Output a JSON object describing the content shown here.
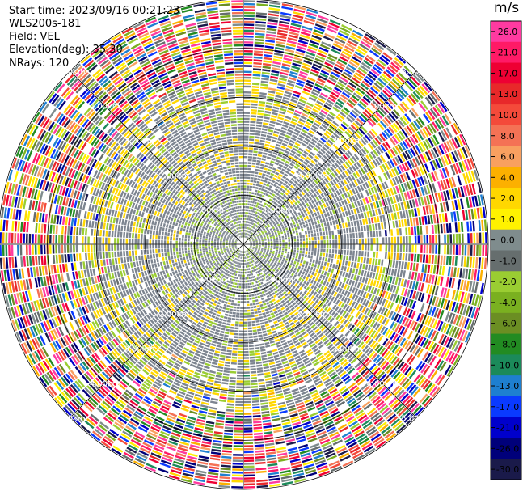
{
  "header": {
    "start_time": "Start time: 2023/09/16 00:21:23",
    "instrument": "WLS200s-181",
    "field": "Field: VEL",
    "elevation": "Elevation(deg): 35.30",
    "nrays": "NRays: 120"
  },
  "chart_data": {
    "type": "ppi-polar",
    "field": "VEL",
    "nrays": 120,
    "range_rings": [
      {
        "label": "1.00km",
        "value_km": 1.0
      },
      {
        "label": "2.00km",
        "value_km": 2.0
      },
      {
        "label": "3.00km",
        "value_km": 3.0
      },
      {
        "label": "4.00km",
        "value_km": 4.0
      },
      {
        "label": "5.00km",
        "value_km": 5.0
      }
    ],
    "max_range_km": 5.0,
    "colorbar": {
      "unit": "m/s",
      "ticks": [
        "26.0",
        "21.0",
        "17.0",
        "13.0",
        "10.0",
        "8.0",
        "6.0",
        "4.0",
        "2.0",
        "1.0",
        "0.0",
        "-1.0",
        "-2.0",
        "-4.0",
        "-6.0",
        "-8.0",
        "-10.0",
        "-13.0",
        "-17.0",
        "-21.0",
        "-26.0",
        "-30.0"
      ],
      "colors": [
        "#ff3aa0",
        "#ff1a66",
        "#ee0033",
        "#e8282a",
        "#f44a3a",
        "#f47255",
        "#f8a060",
        "#fcb000",
        "#ffd700",
        "#fff200",
        "#7f8c8d",
        "#666e6e",
        "#9acd32",
        "#7ab020",
        "#6b8e23",
        "#228b22",
        "#1b8a5a",
        "#1e7fd0",
        "#0a3aff",
        "#0000cc",
        "#00007a",
        "#1a1a4a"
      ]
    },
    "colors": {
      "grey": "#7d8590",
      "yellow": "#ffd700",
      "yellowgreen": "#9acd32"
    }
  }
}
